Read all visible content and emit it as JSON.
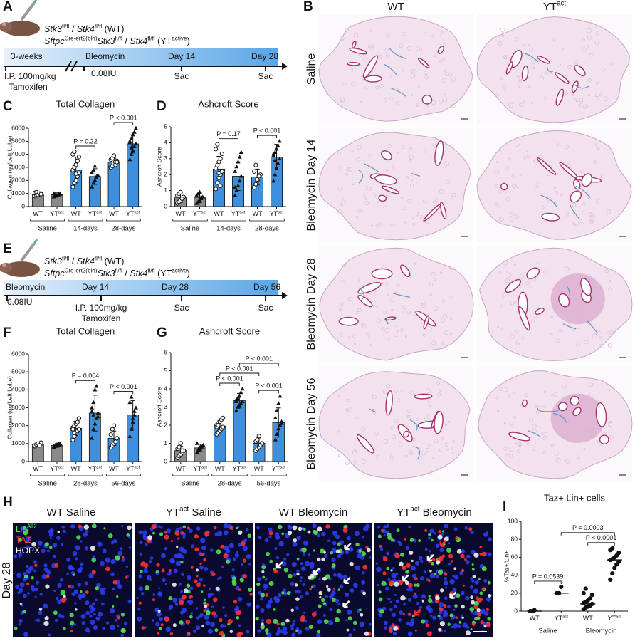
{
  "panel_letters": [
    "A",
    "B",
    "C",
    "D",
    "E",
    "F",
    "G",
    "H",
    "I"
  ],
  "schematic_a": {
    "genotype_lines": [
      [
        {
          "i": "Stk3"
        },
        {
          "sup": "fl/fl"
        },
        " / ",
        {
          "i": "Stk4"
        },
        {
          "sup": "fl/fl"
        },
        " (WT)"
      ],
      [
        {
          "i": "Sftpc"
        },
        {
          "sup": "Cre-ert2(blh)"
        },
        {
          "i": "Stk3"
        },
        {
          "sup": "fl/fl"
        },
        " / ",
        {
          "i": "Stk4"
        },
        {
          "sup": "fl/fl"
        },
        " (YT",
        {
          "sup": "active"
        },
        ")"
      ]
    ],
    "bar_labels": [
      "3-weeks",
      "Bleomycin",
      "Day 14",
      "Day 28"
    ],
    "below_labels": [
      "I.P. 100mg/kg",
      "Tamoxifen",
      "0.08IU",
      "Sac",
      "Sac"
    ]
  },
  "schematic_e": {
    "genotype_lines": [
      [
        {
          "i": "Stk3"
        },
        {
          "sup": "fl/fl"
        },
        " / ",
        {
          "i": "Stk4"
        },
        {
          "sup": "fl/fl"
        },
        " (WT)"
      ],
      [
        {
          "i": "Sftpc"
        },
        {
          "sup": "Cre-ert2(blh)"
        },
        {
          "i": "Stk3"
        },
        {
          "sup": "fl/fl"
        },
        " / ",
        {
          "i": "Stk4"
        },
        {
          "sup": "fl/fl"
        },
        " (YT",
        {
          "sup": "active"
        },
        ")"
      ]
    ],
    "bar_labels": [
      "Bleomycin",
      "Day 14",
      "Day 28",
      "Day 56"
    ],
    "below_labels": [
      "0.08IU",
      "I.P. 100mg/kg",
      "Tamoxifen",
      "Sac",
      "Sac"
    ]
  },
  "histology_b": {
    "columns": [
      [
        "WT"
      ],
      [
        "YT",
        {
          "sup": "act"
        }
      ]
    ],
    "rows": [
      "Saline",
      "Bleomycin Day 14",
      "Bleomycin Day 28",
      "Bleomycin Day 56"
    ]
  },
  "immunofluorescence_h": {
    "titles": [
      [
        "WT Saline"
      ],
      [
        "YT",
        {
          "sup": "act"
        },
        " Saline"
      ],
      [
        "WT Bleomycin"
      ],
      [
        "YT",
        {
          "sup": "act"
        },
        " Bleomycin"
      ]
    ],
    "stain_labels": [
      [
        "Lin",
        {
          "sup": "AT2"
        }
      ],
      [
        "TAZ"
      ],
      [
        "HOPX"
      ]
    ],
    "row_label": "Day 28"
  },
  "chart_data": [
    {
      "type": "bar",
      "title": "Total Collagen",
      "ylabel": "Collagen (ug/Left Lobe)",
      "categories": [
        [
          "WT"
        ],
        [
          "YT",
          {
            "sup": "act"
          }
        ],
        [
          "WT"
        ],
        [
          "YT",
          {
            "sup": "act"
          }
        ],
        [
          "WT"
        ],
        [
          "YT",
          {
            "sup": "act"
          }
        ]
      ],
      "groups": [
        {
          "label": "Saline",
          "span": [
            0,
            1
          ]
        },
        {
          "label": "14-days",
          "span": [
            2,
            3
          ]
        },
        {
          "label": "28-days",
          "span": [
            4,
            5
          ]
        }
      ],
      "group_brackets": true,
      "values": [
        950,
        900,
        2800,
        2300,
        3400,
        4800
      ],
      "errors": [
        150,
        150,
        1000,
        600,
        300,
        700
      ],
      "points": [
        [
          800,
          850,
          900,
          950,
          1000,
          1050,
          1100,
          900,
          1000,
          950
        ],
        [
          750,
          800,
          850,
          900,
          950,
          1000,
          900,
          850,
          950,
          1000,
          800
        ],
        [
          1500,
          1800,
          2000,
          2300,
          2600,
          2800,
          3000,
          3200,
          3500,
          3800,
          4000,
          4200,
          2500
        ],
        [
          1500,
          1800,
          2000,
          2200,
          2400,
          2600,
          2800,
          3100,
          2300
        ],
        [
          3000,
          3100,
          3300,
          3400,
          3500,
          3600,
          3700,
          3900,
          3200,
          3400
        ],
        [
          3600,
          4000,
          4300,
          4600,
          4800,
          5000,
          5200,
          5500,
          5700,
          6000,
          4900,
          4500
        ]
      ],
      "colors": [
        "#8a8a8a",
        "#8a8a8a",
        "#3f8fdc",
        "#3f8fdc",
        "#3f8fdc",
        "#3f8fdc"
      ],
      "markers": [
        "circle-open",
        "triangle",
        "circle-open",
        "triangle",
        "circle-open",
        "triangle"
      ],
      "ylim": [
        0,
        6000
      ],
      "yticks": [
        0,
        1000,
        2000,
        3000,
        4000,
        5000,
        6000
      ],
      "comparisons": [
        {
          "label": "P = 0.22",
          "between": [
            2,
            3
          ]
        },
        {
          "label": "P < 0.001",
          "between": [
            4,
            5
          ]
        }
      ]
    },
    {
      "type": "bar",
      "title": "Ashcroft Score",
      "ylabel": "Ashcroft Score",
      "categories": [
        [
          "WT"
        ],
        [
          "YT",
          {
            "sup": "act"
          }
        ],
        [
          "WT"
        ],
        [
          "YT",
          {
            "sup": "act"
          }
        ],
        [
          "WT"
        ],
        [
          "YT",
          {
            "sup": "act"
          }
        ]
      ],
      "groups": [
        {
          "label": "Saline",
          "span": [
            0,
            1
          ]
        },
        {
          "label": "14-days",
          "span": [
            2,
            3
          ]
        },
        {
          "label": "28-days",
          "span": [
            4,
            5
          ]
        }
      ],
      "group_brackets": true,
      "values": [
        0.55,
        0.55,
        2.35,
        1.9,
        1.85,
        3.1
      ],
      "errors": [
        0.3,
        0.3,
        0.8,
        0.9,
        0.5,
        0.8
      ],
      "points": [
        [
          0.2,
          0.3,
          0.4,
          0.5,
          0.6,
          0.7,
          0.8,
          0.9,
          0.5
        ],
        [
          0.2,
          0.3,
          0.4,
          0.5,
          0.6,
          0.7,
          0.8,
          0.9,
          0.6
        ],
        [
          1.1,
          1.5,
          1.8,
          2.0,
          2.2,
          2.4,
          2.6,
          2.8,
          3.0,
          3.3,
          3.6,
          3.9,
          2.1,
          1.3
        ],
        [
          0.7,
          1.0,
          1.3,
          1.6,
          1.9,
          2.2,
          2.5,
          2.8,
          3.1,
          3.4,
          1.2
        ],
        [
          1.2,
          1.4,
          1.6,
          1.8,
          2.0,
          2.2,
          2.6,
          1.7,
          1.9
        ],
        [
          1.6,
          2.0,
          2.4,
          2.7,
          3.0,
          3.2,
          3.4,
          3.6,
          3.8,
          4.1,
          3.3,
          2.9
        ]
      ],
      "colors": [
        "#8a8a8a",
        "#8a8a8a",
        "#3f8fdc",
        "#3f8fdc",
        "#3f8fdc",
        "#3f8fdc"
      ],
      "markers": [
        "circle-open",
        "triangle",
        "circle-open",
        "triangle",
        "circle-open",
        "triangle"
      ],
      "ylim": [
        0,
        5
      ],
      "yticks": [
        0,
        1,
        2,
        3,
        4,
        5
      ],
      "comparisons": [
        {
          "label": "P = 0.17",
          "between": [
            2,
            3
          ]
        },
        {
          "label": "P < 0.001",
          "between": [
            4,
            5
          ]
        }
      ]
    },
    {
      "type": "bar",
      "title": "Total Collagen",
      "ylabel": "Collagen (ug/Left Lobe)",
      "categories": [
        [
          "WT"
        ],
        [
          "YT",
          {
            "sup": "act"
          }
        ],
        [
          "WT"
        ],
        [
          "YT",
          {
            "sup": "act"
          }
        ],
        [
          "WT"
        ],
        [
          "YT",
          {
            "sup": "act"
          }
        ]
      ],
      "groups": [
        {
          "label": "Saline",
          "span": [
            0,
            1
          ]
        },
        {
          "label": "28-days",
          "span": [
            2,
            3
          ]
        },
        {
          "label": "56-days",
          "span": [
            4,
            5
          ]
        }
      ],
      "group_brackets": true,
      "values": [
        950,
        900,
        1850,
        2700,
        1300,
        2600
      ],
      "errors": [
        100,
        100,
        400,
        1000,
        400,
        800
      ],
      "points": [
        [
          850,
          900,
          950,
          1000,
          1050,
          900,
          950,
          1000,
          900
        ],
        [
          800,
          850,
          900,
          950,
          1000,
          850,
          900,
          950,
          1000,
          900
        ],
        [
          1200,
          1400,
          1600,
          1700,
          1800,
          1900,
          2000,
          2100,
          2200,
          2400,
          1800,
          1600
        ],
        [
          1300,
          1800,
          2100,
          2400,
          2700,
          3000,
          3300,
          4000,
          4200,
          2500,
          2800,
          2600
        ],
        [
          800,
          900,
          1000,
          1100,
          1300,
          1500,
          1800,
          2000
        ],
        [
          1400,
          1800,
          2200,
          2600,
          3000,
          3300,
          3600,
          2400,
          2800
        ]
      ],
      "colors": [
        "#8a8a8a",
        "#8a8a8a",
        "#3f8fdc",
        "#3f8fdc",
        "#3f8fdc",
        "#3f8fdc"
      ],
      "markers": [
        "circle-open",
        "triangle",
        "circle-open",
        "triangle",
        "circle-open",
        "triangle"
      ],
      "ylim": [
        0,
        6000
      ],
      "yticks": [
        0,
        1000,
        2000,
        3000,
        4000,
        5000,
        6000
      ],
      "comparisons": [
        {
          "label": "P = 0.004",
          "between": [
            2,
            3
          ]
        },
        {
          "label": "P < 0.001",
          "between": [
            4,
            5
          ]
        }
      ]
    },
    {
      "type": "bar",
      "title": "Ashcroft Score",
      "ylabel": "Ashcroft Score",
      "categories": [
        [
          "WT"
        ],
        [
          "YT",
          {
            "sup": "act"
          }
        ],
        [
          "WT"
        ],
        [
          "YT",
          {
            "sup": "act"
          }
        ],
        [
          "WT"
        ],
        [
          "YT",
          {
            "sup": "act"
          }
        ]
      ],
      "groups": [
        {
          "label": "Saline",
          "span": [
            0,
            1
          ]
        },
        {
          "label": "28-days",
          "span": [
            2,
            3
          ]
        },
        {
          "label": "56-days",
          "span": [
            4,
            5
          ]
        }
      ],
      "group_brackets": true,
      "values": [
        0.6,
        0.75,
        1.95,
        3.35,
        1.0,
        2.15
      ],
      "errors": [
        0.25,
        0.2,
        0.3,
        0.4,
        0.3,
        0.8
      ],
      "points": [
        [
          0.2,
          0.3,
          0.4,
          0.5,
          0.6,
          0.7,
          0.8,
          1.0,
          0.6
        ],
        [
          0.5,
          0.6,
          0.7,
          0.8,
          0.9,
          1.0,
          0.7,
          0.8
        ],
        [
          1.5,
          1.6,
          1.7,
          1.8,
          1.9,
          2.0,
          2.1,
          2.2,
          2.3,
          2.4,
          1.9,
          2.0
        ],
        [
          2.8,
          3.0,
          3.1,
          3.2,
          3.3,
          3.4,
          3.5,
          3.6,
          3.8,
          4.0,
          3.3
        ],
        [
          0.6,
          0.7,
          0.8,
          0.9,
          1.0,
          1.1,
          1.2,
          1.4
        ],
        [
          1.2,
          1.5,
          1.8,
          2.0,
          2.2,
          2.4,
          2.8,
          3.2,
          3.6,
          2.1
        ]
      ],
      "colors": [
        "#8a8a8a",
        "#8a8a8a",
        "#3f8fdc",
        "#3f8fdc",
        "#3f8fdc",
        "#3f8fdc"
      ],
      "markers": [
        "circle-open",
        "triangle",
        "circle-open",
        "triangle",
        "circle-open",
        "triangle"
      ],
      "ylim": [
        0,
        6
      ],
      "yticks": [
        0,
        1,
        2,
        3,
        4,
        5,
        6
      ],
      "comparisons": [
        {
          "label": "P < 0.001",
          "between": [
            2,
            3
          ]
        },
        {
          "label": "P < 0.001",
          "between": [
            4,
            5
          ]
        },
        {
          "label": "P < 0.001",
          "between": [
            2,
            4
          ]
        },
        {
          "label": "P < 0.001",
          "between": [
            3,
            5
          ]
        }
      ]
    },
    {
      "type": "strip",
      "title": "Taz+ Lin+ cells",
      "ylabel": "%Taz+/Lin+",
      "categories": [
        [
          "WT"
        ],
        [
          "YT",
          {
            "sup": "act"
          }
        ],
        [
          "WT"
        ],
        [
          "YT",
          {
            "sup": "act"
          }
        ]
      ],
      "groups": [
        {
          "label": "Saline",
          "span": [
            0,
            1
          ]
        },
        {
          "label": "Bleomycin",
          "span": [
            2,
            3
          ]
        }
      ],
      "group_brackets": false,
      "medians": [
        0,
        20,
        8,
        57
      ],
      "points": [
        [
          0,
          0,
          1
        ],
        [
          20,
          20,
          27
        ],
        [
          2,
          4,
          5,
          6,
          8,
          9,
          10,
          12,
          14,
          18,
          20,
          25
        ],
        [
          35,
          42,
          48,
          52,
          55,
          57,
          58,
          60,
          62,
          65,
          68,
          70
        ]
      ],
      "markers": [
        "circle",
        "circle",
        "circle",
        "circle"
      ],
      "colors": [
        "#111111",
        "#111111",
        "#111111",
        "#111111"
      ],
      "ylim": [
        0,
        100
      ],
      "yticks": [
        0,
        20,
        40,
        60,
        80,
        100
      ],
      "comparisons": [
        {
          "label": "P = 0.0539",
          "between": [
            0,
            1
          ]
        },
        {
          "label": "P < 0.0001",
          "between": [
            2,
            3
          ]
        },
        {
          "label": "P = 0.0003",
          "between": [
            1,
            3
          ]
        }
      ]
    }
  ]
}
